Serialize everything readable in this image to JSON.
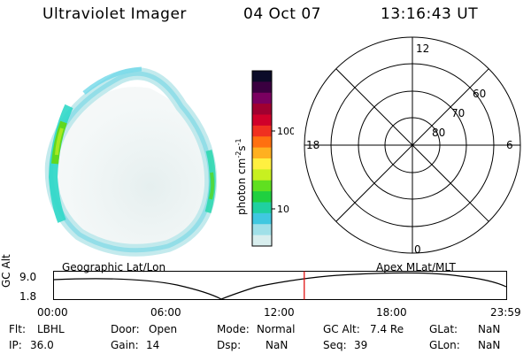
{
  "header": {
    "instrument": "Ultraviolet Imager",
    "date": "04 Oct 07",
    "time": "13:16:43 UT"
  },
  "colorbar": {
    "unit_label": "photon cm",
    "unit_exp1": "-2",
    "unit_s": "s",
    "unit_exp2": "-1",
    "tick_100": "100",
    "tick_10": "10",
    "colors": [
      "#0b0b28",
      "#3a0040",
      "#7a0060",
      "#a00030",
      "#d0002a",
      "#f03020",
      "#ff7010",
      "#ffb020",
      "#fff040",
      "#c8f020",
      "#60e020",
      "#20d040",
      "#20d0a0",
      "#40c8e0",
      "#a0e0e8",
      "#d8eeee"
    ]
  },
  "polar_plot": {
    "mlt_12": "12",
    "mlt_18": "18",
    "mlt_6": "6",
    "mlt_0": "0",
    "lat_60": "60",
    "lat_70": "70",
    "lat_80": "80"
  },
  "altitude_plot": {
    "ylabel": "GC Alt",
    "ytick_top": "9.0",
    "ytick_bottom": "1.8",
    "left_label": "Geographic Lat/Lon",
    "right_label": "Apex MLat/MLT",
    "xticks": [
      "00:00",
      "06:00",
      "12:00",
      "18:00",
      "23:59"
    ],
    "current_time_fraction": 0.5533,
    "marker_color": "#e00000"
  },
  "status": {
    "flt_label": "Flt:",
    "flt_value": "LBHL",
    "ip_label": "IP:",
    "ip_value": "36.0",
    "door_label": "Door:",
    "door_value": "Open",
    "gain_label": "Gain:",
    "gain_value": "14",
    "mode_label": "Mode:",
    "mode_value": "Normal",
    "dsp_label": "Dsp:",
    "dsp_value": "NaN",
    "gcalt_label": "GC Alt:",
    "gcalt_value": "7.4 Re",
    "seq_label": "Seq:",
    "seq_value": "39",
    "glat_label": "GLat:",
    "glat_value": "NaN",
    "glon_label": "GLon:",
    "glon_value": "NaN"
  }
}
